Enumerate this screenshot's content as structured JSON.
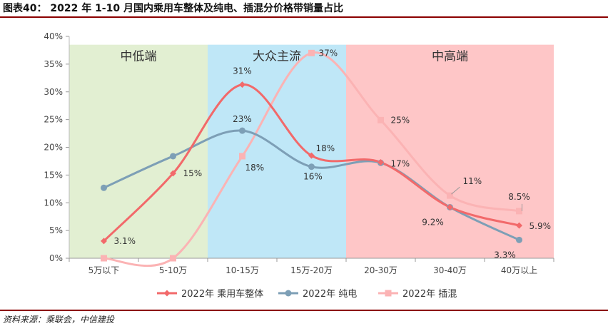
{
  "figure": {
    "title": "图表40： 2022 年 1-10 月国内乘用车整体及纯电、插混分价格带销量占比",
    "source": "资料来源：乘联会，中信建投"
  },
  "chart_data": {
    "type": "line",
    "categories": [
      "5万以下",
      "5-10万",
      "10-15万",
      "15万-20万",
      "20-30万",
      "30-40万",
      "40万以上"
    ],
    "ylim": [
      0,
      40
    ],
    "yticks": [
      0,
      5,
      10,
      15,
      20,
      25,
      30,
      35,
      40
    ],
    "ytick_labels": [
      "0%",
      "5%",
      "10%",
      "15%",
      "20%",
      "25%",
      "30%",
      "35%",
      "40%"
    ],
    "bands": [
      {
        "label": "中低端",
        "from": 0,
        "to": 2,
        "color": "#e2efd2"
      },
      {
        "label": "大众主流",
        "from": 2,
        "to": 4,
        "color": "#bfe7f7"
      },
      {
        "label": "中高端",
        "from": 4,
        "to": 7,
        "color": "#fec6c7"
      }
    ],
    "series": [
      {
        "name": "2022年 乘用车整体",
        "color": "#f2696a",
        "marker": "diamond",
        "values": [
          3.1,
          15.3,
          31.3,
          18.5,
          17.3,
          9.2,
          5.9
        ],
        "labels": [
          "3.1%",
          "15%",
          "31%",
          "18%",
          "",
          "9.2%",
          "5.9%"
        ]
      },
      {
        "name": "2022年 纯电",
        "color": "#7d9fb6",
        "marker": "circle",
        "values": [
          12.7,
          18.4,
          23.0,
          16.5,
          17.2,
          9.2,
          3.3
        ],
        "labels": [
          "",
          "",
          "23%",
          "16%",
          "17%",
          "",
          "3.3%"
        ]
      },
      {
        "name": "2022年 插混",
        "color": "#fbb3b4",
        "marker": "square",
        "values": [
          0,
          0,
          18.4,
          37.0,
          24.9,
          11.3,
          8.5
        ],
        "labels": [
          "",
          "",
          "18%",
          "37%",
          "25%",
          "11%",
          "8.5%"
        ]
      }
    ]
  }
}
